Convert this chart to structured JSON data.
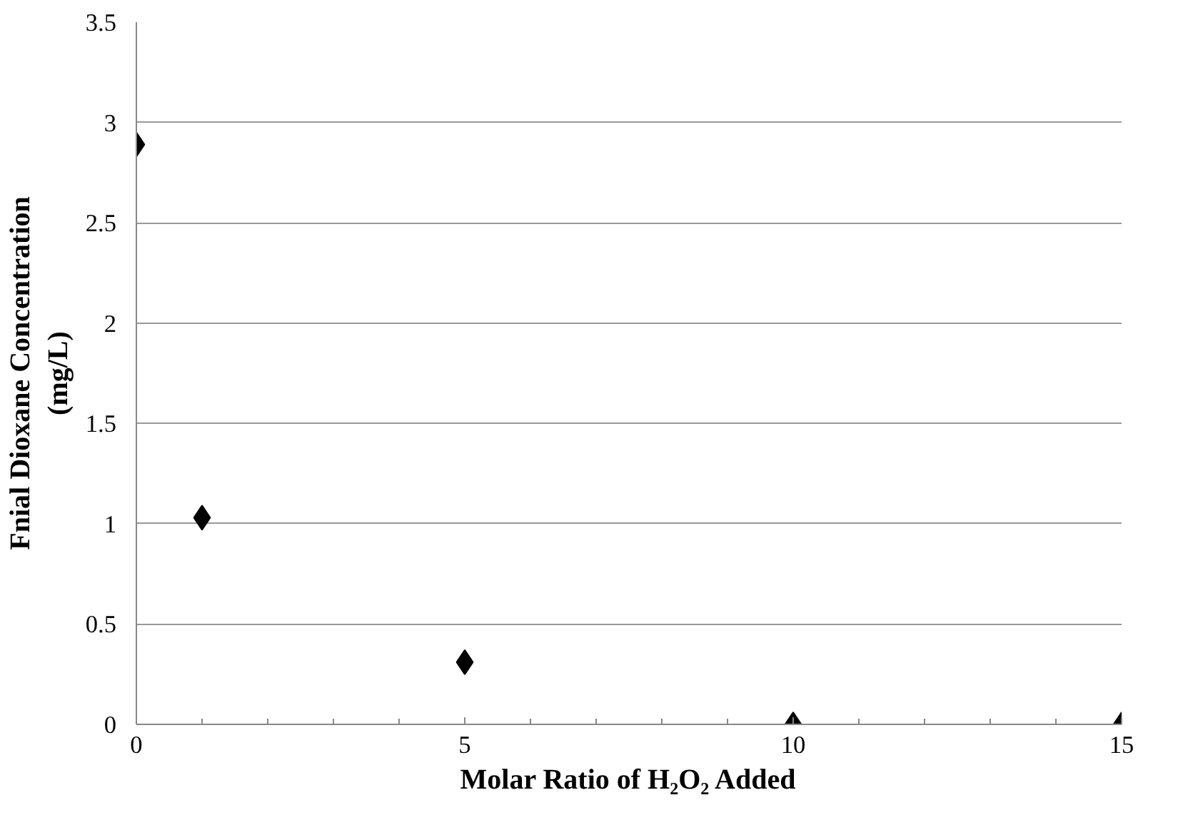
{
  "chart_data": {
    "type": "scatter",
    "xlabel": "Molar Ratio of H₂O₂ Added",
    "ylabel": "Fnial Dioxane Concentration (mg/L)",
    "x": [
      0,
      1,
      5,
      10,
      15
    ],
    "series": [
      {
        "color": "#000000",
        "values": [
          2.89,
          1.03,
          0.31,
          0,
          0
        ]
      }
    ],
    "xlim": [
      0,
      15
    ],
    "xticks": [
      0,
      5,
      10,
      15
    ],
    "ylim": [
      0,
      3.5
    ],
    "yticks": [
      0,
      0.5,
      1,
      1.5,
      2,
      2.5,
      3,
      3.5
    ],
    "grid": "y",
    "marker": "diamond"
  }
}
